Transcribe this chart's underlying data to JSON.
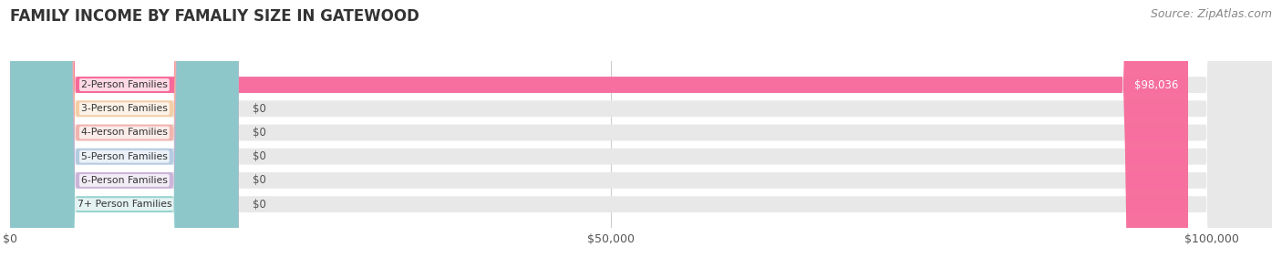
{
  "title": "FAMILY INCOME BY FAMALIY SIZE IN GATEWOOD",
  "source": "Source: ZipAtlas.com",
  "categories": [
    "2-Person Families",
    "3-Person Families",
    "4-Person Families",
    "5-Person Families",
    "6-Person Families",
    "7+ Person Families"
  ],
  "values": [
    98036,
    0,
    0,
    0,
    0,
    0
  ],
  "bar_colors": [
    "#f7699a",
    "#f7c896",
    "#f4a8a0",
    "#a8c4e0",
    "#c4a8d4",
    "#80cec8"
  ],
  "value_labels": [
    "$98,036",
    "$0",
    "$0",
    "$0",
    "$0",
    "$0"
  ],
  "xlim": [
    0,
    105000
  ],
  "xticks": [
    0,
    50000,
    100000
  ],
  "xticklabels": [
    "$0",
    "$50,000",
    "$100,000"
  ],
  "bg_color": "#ffffff",
  "bar_bg_color": "#e8e8e8",
  "title_fontsize": 12,
  "source_fontsize": 9,
  "tick_fontsize": 9,
  "bar_height": 0.68
}
